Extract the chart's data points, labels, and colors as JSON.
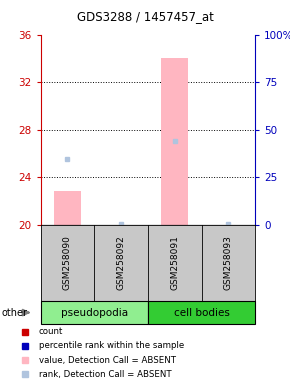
{
  "title": "GDS3288 / 1457457_at",
  "samples": [
    "GSM258090",
    "GSM258092",
    "GSM258091",
    "GSM258093"
  ],
  "groups": [
    "pseudopodia",
    "pseudopodia",
    "cell bodies",
    "cell bodies"
  ],
  "pseudo_color": "#90EE90",
  "cell_color": "#33CC33",
  "bar_color_absent": "#FFB6C1",
  "rank_color_absent": "#B0C4DE",
  "bar_values": [
    22.8,
    0,
    34.0,
    0
  ],
  "rank_values_absent": [
    25.5,
    20.05,
    27.0,
    20.05
  ],
  "ylim_left": [
    20,
    36
  ],
  "ylim_right": [
    0,
    100
  ],
  "yticks_left": [
    20,
    24,
    28,
    32,
    36
  ],
  "yticks_right": [
    0,
    25,
    50,
    75,
    100
  ],
  "ytick_labels_right": [
    "0",
    "25",
    "50",
    "75",
    "100%"
  ],
  "left_axis_color": "#CC0000",
  "right_axis_color": "#0000BB",
  "background_color": "#ffffff",
  "sample_label_bg": "#C8C8C8",
  "legend_items": [
    {
      "color": "#CC0000",
      "label": "count"
    },
    {
      "color": "#0000BB",
      "label": "percentile rank within the sample"
    },
    {
      "color": "#FFB6C1",
      "label": "value, Detection Call = ABSENT"
    },
    {
      "color": "#B0C4DE",
      "label": "rank, Detection Call = ABSENT"
    }
  ]
}
